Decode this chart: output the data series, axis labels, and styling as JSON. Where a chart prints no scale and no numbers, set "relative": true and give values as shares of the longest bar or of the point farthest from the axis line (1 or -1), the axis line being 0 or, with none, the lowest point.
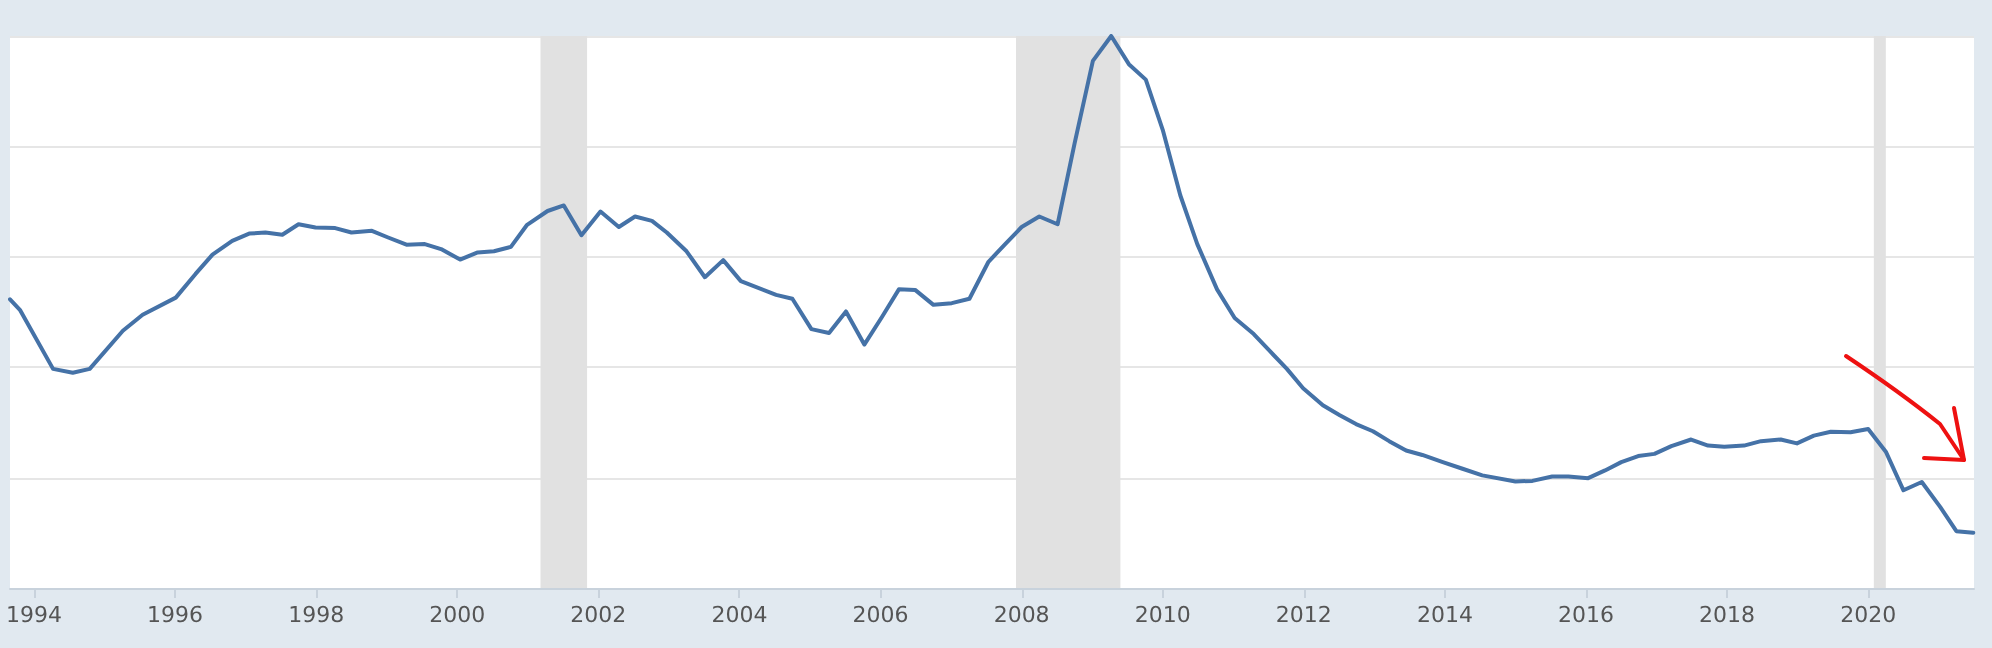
{
  "chart_data": {
    "type": "line",
    "relative": true,
    "grid": "y",
    "marker": "none",
    "line_style": "solid",
    "tick_labels": "x",
    "xlim": [
      1993.66,
      2021.5
    ],
    "xticks": [
      1994,
      1996,
      1998,
      2000,
      2002,
      2004,
      2006,
      2008,
      2010,
      2012,
      2014,
      2016,
      2018,
      2020
    ],
    "bands": [
      {
        "axis": "x",
        "from": 2001.18,
        "to": 2001.84,
        "color": "#e1e1e1"
      },
      {
        "axis": "x",
        "from": 2007.92,
        "to": 2009.4,
        "color": "#e1e1e1"
      },
      {
        "axis": "x",
        "from": 2020.08,
        "to": 2020.25,
        "color": "#e1e1e1"
      }
    ],
    "series": [
      {
        "color": "#4572a7",
        "x": [
          1993.66,
          1993.8,
          1994.27,
          1994.55,
          1994.79,
          1995.26,
          1995.54,
          1996.01,
          1996.29,
          1996.53,
          1996.81,
          1997.05,
          1997.28,
          1997.52,
          1997.75,
          1997.99,
          1998.27,
          1998.5,
          1998.79,
          1999.02,
          1999.28,
          1999.54,
          1999.77,
          2000.04,
          2000.29,
          2000.52,
          2000.76,
          2000.99,
          2001.28,
          2001.51,
          2001.76,
          2002.03,
          2002.29,
          2002.52,
          2002.76,
          2002.97,
          2003.25,
          2003.51,
          2003.77,
          2004.02,
          2004.52,
          2004.75,
          2005.02,
          2005.27,
          2005.51,
          2005.77,
          2006.02,
          2006.26,
          2006.49,
          2006.75,
          2007.01,
          2007.26,
          2007.53,
          2007.76,
          2008.0,
          2008.25,
          2008.51,
          2008.75,
          2009.01,
          2009.27,
          2009.52,
          2009.76,
          2010.0,
          2010.25,
          2010.49,
          2010.77,
          2011.02,
          2011.29,
          2011.52,
          2011.76,
          2011.99,
          2012.27,
          2012.51,
          2012.74,
          2012.98,
          2013.21,
          2013.45,
          2013.68,
          2013.97,
          2014.25,
          2014.53,
          2015.0,
          2015.24,
          2015.52,
          2015.75,
          2016.03,
          2016.27,
          2016.5,
          2016.74,
          2016.97,
          2017.21,
          2017.49,
          2017.73,
          2017.96,
          2018.24,
          2018.48,
          2018.76,
          2018.99,
          2019.23,
          2019.47,
          2019.75,
          2020.0,
          2020.25,
          2020.5,
          2020.76,
          2021.02,
          2021.25,
          2021.49
        ],
        "values": [
          0.523,
          0.504,
          0.397,
          0.39,
          0.397,
          0.466,
          0.495,
          0.526,
          0.569,
          0.604,
          0.629,
          0.642,
          0.644,
          0.64,
          0.659,
          0.653,
          0.652,
          0.644,
          0.647,
          0.635,
          0.622,
          0.623,
          0.614,
          0.595,
          0.608,
          0.61,
          0.618,
          0.658,
          0.683,
          0.693,
          0.639,
          0.682,
          0.654,
          0.673,
          0.665,
          0.644,
          0.61,
          0.563,
          0.594,
          0.556,
          0.531,
          0.524,
          0.469,
          0.462,
          0.501,
          0.441,
          0.491,
          0.541,
          0.54,
          0.513,
          0.516,
          0.524,
          0.591,
          0.622,
          0.654,
          0.673,
          0.659,
          0.805,
          0.955,
          1,
          0.949,
          0.921,
          0.83,
          0.711,
          0.623,
          0.541,
          0.489,
          0.46,
          0.429,
          0.397,
          0.362,
          0.331,
          0.313,
          0.297,
          0.284,
          0.266,
          0.249,
          0.241,
          0.228,
          0.216,
          0.204,
          0.193,
          0.194,
          0.202,
          0.202,
          0.199,
          0.213,
          0.228,
          0.239,
          0.243,
          0.257,
          0.269,
          0.258,
          0.256,
          0.258,
          0.266,
          0.269,
          0.262,
          0.276,
          0.283,
          0.282,
          0.288,
          0.247,
          0.177,
          0.192,
          0.147,
          0.103,
          0.1
        ]
      }
    ]
  }
}
